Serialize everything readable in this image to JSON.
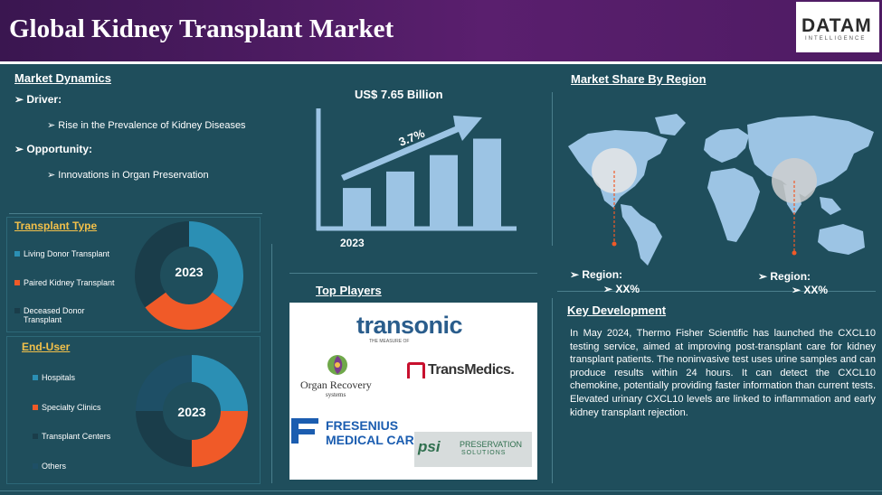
{
  "header": {
    "title": "Global Kidney Transplant Market"
  },
  "logo": {
    "main": "DATAM",
    "sub": "INTELLIGENCE"
  },
  "dynamics": {
    "heading": "Market Dynamics",
    "driver_label": "Driver:",
    "driver_item": "Rise in the Prevalence of Kidney Diseases",
    "opportunity_label": "Opportunity:",
    "opportunity_item": "Innovations in Organ Preservation"
  },
  "growth": {
    "value_label": "US$ 7.65 Billion",
    "cagr_label": "3.7%",
    "year_label": "2023",
    "bars": [
      0.33,
      0.47,
      0.61,
      0.75
    ]
  },
  "transplant_type": {
    "heading": "Transplant Type",
    "year": "2023",
    "items": [
      {
        "label": "Living Donor Transplant",
        "color": "#2b8fb4",
        "share": 0.35
      },
      {
        "label": "Paired Kidney Transplant",
        "color": "#f05a28",
        "share": 0.3
      },
      {
        "label": "Deceased Donor Transplant",
        "color": "#1a3d4a",
        "share": 0.35
      }
    ]
  },
  "end_user": {
    "heading": "End-User",
    "year": "2023",
    "items": [
      {
        "label": "Hospitals",
        "color": "#2b8fb4",
        "share": 0.25
      },
      {
        "label": "Specialty Clinics",
        "color": "#f05a28",
        "share": 0.25
      },
      {
        "label": "Transplant Centers",
        "color": "#1a3d4a",
        "share": 0.25
      },
      {
        "label": "Others",
        "color": "#1e4f66",
        "share": 0.25
      }
    ]
  },
  "region": {
    "heading": "Market Share By Region",
    "left_label": "Region:",
    "left_value": "XX%",
    "right_label": "Region:",
    "right_value": "XX%"
  },
  "players": {
    "heading": "Top Players",
    "transonic": "transonic",
    "transonic_tag": "THE MEASURE OF",
    "organ_recovery_1": "Organ Recovery",
    "organ_recovery_2": "systems",
    "transmedics": "TransMedics.",
    "fresenius_1": "FRESENIUS",
    "fresenius_2": "MEDICAL CARE",
    "psi_mark": "psi",
    "psi_1": "PRESERVATION",
    "psi_2": "SOLUTIONS"
  },
  "key_development": {
    "heading": "Key Development",
    "text": "In May 2024, Thermo Fisher Scientific has launched the CXCL10 testing service, aimed at improving post-transplant care for kidney transplant patients. The noninvasive test uses urine samples and can produce results within 24 hours. It can detect the CXCL10 chemokine, potentially providing faster information than current tests. Elevated urinary CXCL10 levels are linked to inflammation and early kidney transplant rejection."
  }
}
